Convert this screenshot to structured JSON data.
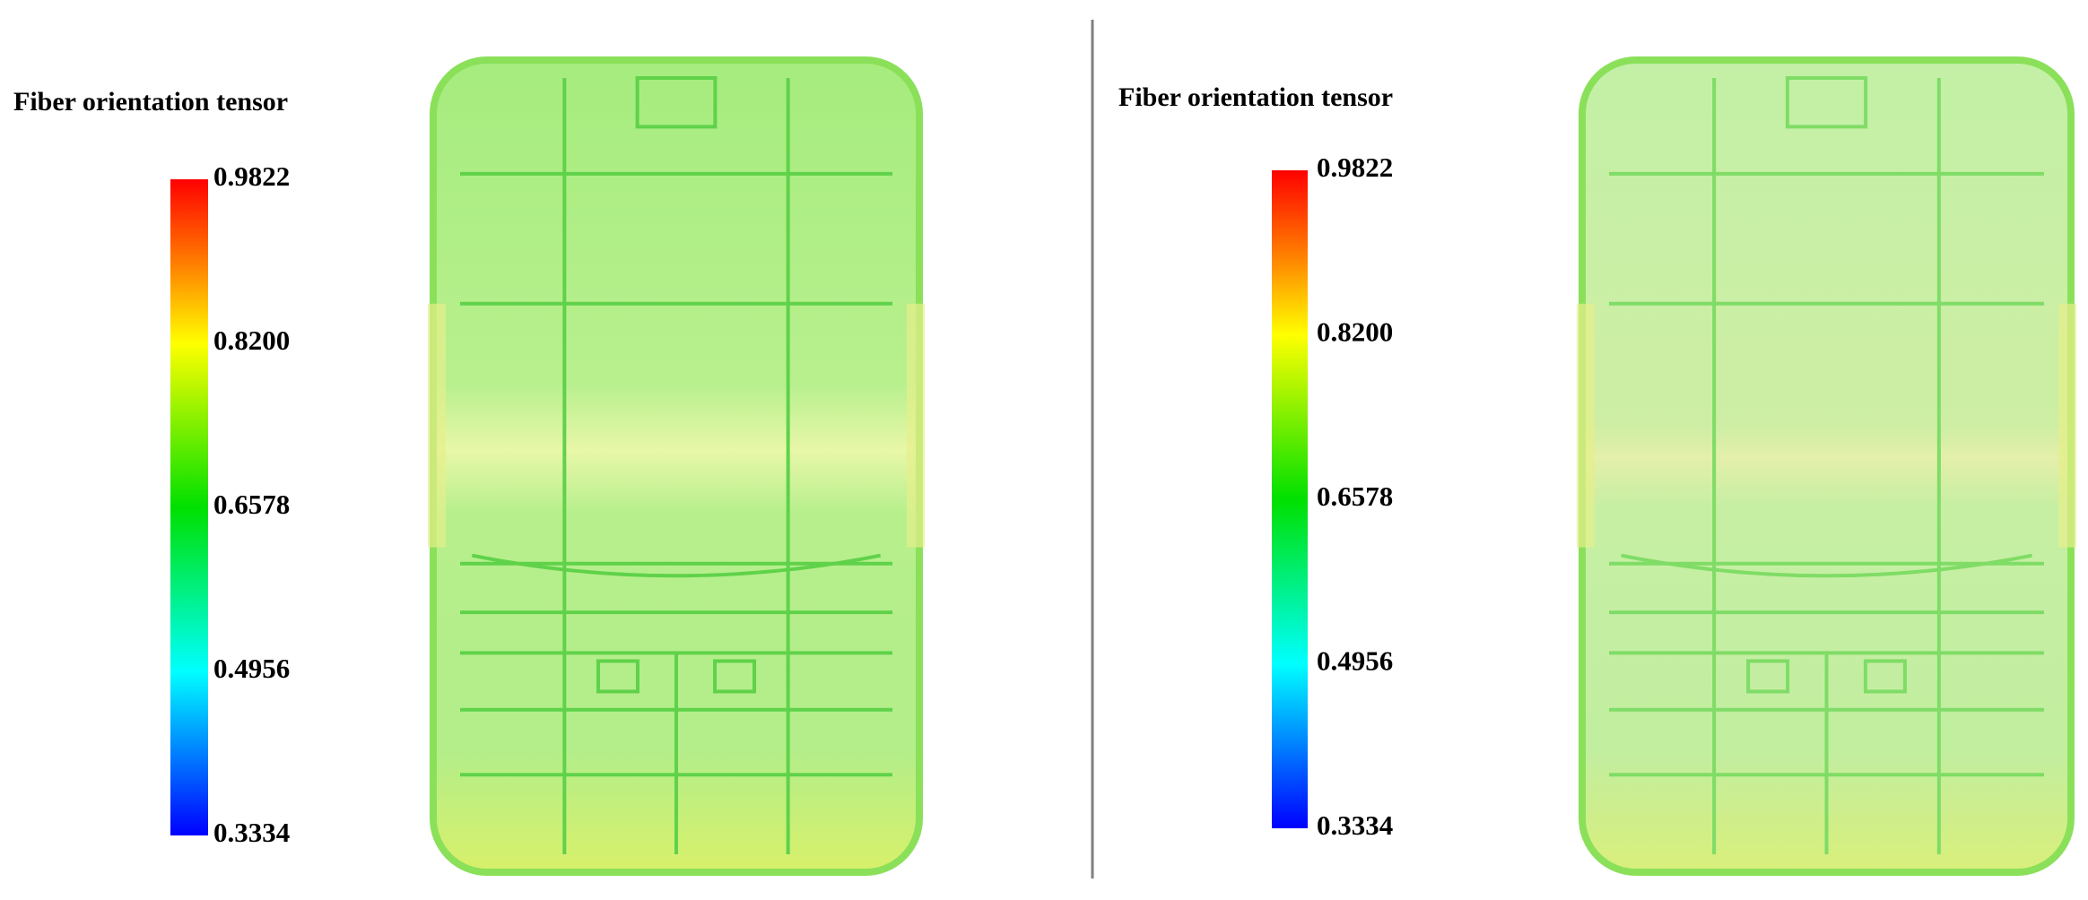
{
  "panels": [
    {
      "title": "Fiber orientation tensor",
      "colorbar": {
        "ticks": [
          "0.9822",
          "0.8200",
          "0.6578",
          "0.4956",
          "0.3334"
        ]
      }
    },
    {
      "title": "Fiber orientation tensor",
      "colorbar": {
        "ticks": [
          "0.9822",
          "0.8200",
          "0.6578",
          "0.4956",
          "0.3334"
        ]
      }
    }
  ]
}
